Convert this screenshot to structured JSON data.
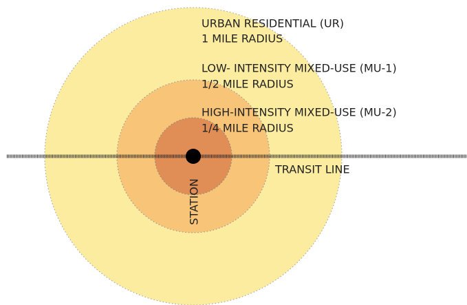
{
  "zones": [
    {
      "name": "URBAN RESIDENTIAL (UR)",
      "radius": "1 MILE RADIUS"
    },
    {
      "name": "LOW- INTENSITY MIXED-USE (MU-1)",
      "radius": "1/2 MILE RADIUS"
    },
    {
      "name": "HIGH-INTENSITY MIXED-USE (MU-2)",
      "radius": "1/4 MILE RADIUS"
    }
  ],
  "transit_line": "TRANSIT LINE",
  "station": "STATION"
}
